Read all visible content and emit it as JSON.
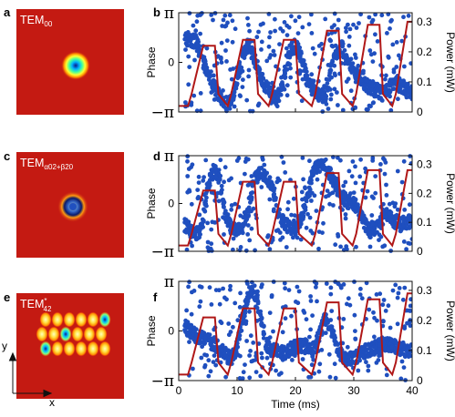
{
  "figure": {
    "panel_letters": [
      "a",
      "b",
      "c",
      "d",
      "e",
      "f"
    ],
    "mode_images": [
      {
        "letter": "a",
        "base": "TEM",
        "sub": "00",
        "sup": "",
        "pattern": "gaussian"
      },
      {
        "letter": "c",
        "base": "TEM",
        "sub": "α02+β20",
        "sup": "",
        "pattern": "donut"
      },
      {
        "letter": "e",
        "base": "TEM",
        "sub": "42",
        "sup": "*",
        "pattern": "multi-lobe"
      }
    ],
    "axis_arrows": {
      "x": "x",
      "y": "y"
    },
    "colors": {
      "phase": "#1f4fbf",
      "power": "#b01818",
      "map_background": "#c41a12"
    }
  },
  "chart_data": [
    {
      "panel": "b",
      "type": "scatter+line",
      "ylabel_left": "Phase",
      "ylabel_right": "Power (mW)",
      "yticks_left": [
        "π",
        "0",
        "−π"
      ],
      "yticks_right": [
        "0",
        "0.1",
        "0.2",
        "0.3"
      ],
      "xlim": [
        0,
        40
      ],
      "ylim_right": [
        0,
        0.33
      ],
      "power_series": {
        "name": "Power (mW)",
        "x": [
          0,
          1.6,
          2.2,
          4.2,
          6.2,
          6.8,
          8.4,
          9.0,
          11.0,
          13.0,
          13.6,
          15.4,
          16.0,
          18.0,
          20.0,
          20.6,
          22.8,
          23.4,
          25.4,
          27.4,
          28.0,
          29.8,
          30.4,
          32.4,
          34.4,
          35.0,
          36.6,
          37.2,
          39.2,
          40
        ],
        "values": [
          0.02,
          0.02,
          0.06,
          0.22,
          0.22,
          0.06,
          0.02,
          0.06,
          0.24,
          0.24,
          0.06,
          0.02,
          0.06,
          0.24,
          0.24,
          0.06,
          0.02,
          0.06,
          0.27,
          0.27,
          0.06,
          0.02,
          0.06,
          0.29,
          0.29,
          0.06,
          0.02,
          0.06,
          0.3,
          0.3
        ]
      },
      "phase_series": {
        "name": "Phase",
        "x": [
          1,
          2,
          3,
          4,
          5,
          6,
          7,
          8,
          9,
          10,
          11,
          12,
          13,
          14,
          15,
          16,
          17,
          18,
          19,
          20,
          21,
          22,
          23,
          24,
          25,
          26,
          27,
          28,
          29,
          30,
          31,
          32,
          33,
          34,
          35,
          36,
          37,
          38,
          39
        ],
        "values": [
          1.6,
          1.4,
          1.3,
          0.2,
          -0.6,
          -1.4,
          -2.2,
          -2.8,
          -2.4,
          -1.2,
          0.5,
          1.2,
          0.2,
          -0.9,
          -1.6,
          -2.0,
          -2.4,
          -1.0,
          0.7,
          1.1,
          0.3,
          -1.1,
          -1.7,
          -2.0,
          -2.2,
          -0.8,
          0.6,
          0.9,
          0.2,
          -0.4,
          -1.0,
          -1.4,
          -1.6,
          -1.8,
          -2.0,
          -1.6,
          -1.2,
          -1.5,
          -1.8
        ]
      }
    },
    {
      "panel": "d",
      "type": "scatter+line",
      "ylabel_left": "Phase",
      "ylabel_right": "Power (mW)",
      "yticks_left": [
        "π",
        "0",
        "−π"
      ],
      "yticks_right": [
        "0",
        "0.1",
        "0.2",
        "0.3"
      ],
      "xlim": [
        0,
        40
      ],
      "ylim_right": [
        0,
        0.33
      ],
      "power_series": {
        "name": "Power (mW)",
        "x": [
          0,
          1.6,
          2.2,
          4.2,
          6.2,
          6.8,
          8.4,
          9.0,
          11.0,
          13.0,
          13.6,
          15.4,
          16.0,
          18.0,
          20.0,
          20.6,
          22.8,
          23.4,
          25.4,
          27.4,
          28.0,
          29.8,
          30.4,
          32.4,
          34.4,
          35.0,
          36.6,
          37.2,
          39.2,
          40
        ],
        "values": [
          0.02,
          0.02,
          0.06,
          0.21,
          0.21,
          0.06,
          0.02,
          0.06,
          0.24,
          0.24,
          0.06,
          0.02,
          0.06,
          0.24,
          0.24,
          0.06,
          0.02,
          0.06,
          0.27,
          0.27,
          0.06,
          0.02,
          0.06,
          0.28,
          0.28,
          0.06,
          0.02,
          0.06,
          0.28,
          0.28
        ]
      },
      "phase_series": {
        "name": "Phase",
        "x": [
          1,
          2,
          3,
          4,
          5,
          6,
          7,
          8,
          9,
          10,
          11,
          12,
          13,
          14,
          15,
          16,
          17,
          18,
          19,
          20,
          21,
          22,
          23,
          24,
          25,
          26,
          27,
          28,
          29,
          30,
          31,
          32,
          33,
          34,
          35,
          36,
          37,
          38,
          39
        ],
        "values": [
          -1.4,
          -1.8,
          -2.0,
          -1.6,
          1.3,
          2.2,
          1.8,
          -0.8,
          -1.6,
          -1.7,
          -1.5,
          -0.4,
          1.6,
          2.0,
          1.8,
          1.2,
          -0.6,
          -1.3,
          -1.6,
          -1.7,
          -1.0,
          0.4,
          2.1,
          2.4,
          2.6,
          1.9,
          1.2,
          0.4,
          0.1,
          0.0,
          -0.6,
          -1.4,
          -1.9,
          -1.6,
          -1.0,
          -0.6,
          -1.2,
          -1.4,
          -1.2
        ]
      }
    },
    {
      "panel": "f",
      "type": "scatter+line",
      "xlabel": "Time (ms)",
      "ylabel_left": "Phase",
      "ylabel_right": "Power (mW)",
      "xticks": [
        "0",
        "10",
        "20",
        "30",
        "40"
      ],
      "yticks_left": [
        "π",
        "0",
        "−π"
      ],
      "yticks_right": [
        "0",
        "0.1",
        "0.2",
        "0.3"
      ],
      "xlim": [
        0,
        40
      ],
      "ylim_right": [
        0,
        0.33
      ],
      "power_series": {
        "name": "Power (mW)",
        "x": [
          0,
          1.6,
          2.2,
          4.2,
          6.2,
          6.8,
          8.4,
          9.0,
          11.0,
          13.0,
          13.6,
          15.4,
          16.0,
          18.0,
          20.0,
          20.6,
          22.8,
          23.4,
          25.4,
          27.4,
          28.0,
          29.8,
          30.4,
          32.4,
          34.4,
          35.0,
          36.6,
          37.2,
          39.2,
          40
        ],
        "values": [
          0.02,
          0.02,
          0.06,
          0.21,
          0.21,
          0.06,
          0.02,
          0.06,
          0.24,
          0.24,
          0.06,
          0.02,
          0.06,
          0.24,
          0.24,
          0.06,
          0.02,
          0.06,
          0.26,
          0.26,
          0.06,
          0.02,
          0.06,
          0.27,
          0.27,
          0.06,
          0.02,
          0.06,
          0.29,
          0.29
        ]
      },
      "phase_series": {
        "name": "Phase",
        "x": [
          1,
          2,
          3,
          4,
          5,
          6,
          7,
          8,
          9,
          10,
          11,
          12,
          13,
          14,
          15,
          16,
          17,
          18,
          19,
          20,
          21,
          22,
          23,
          24,
          25,
          26,
          27,
          28,
          29,
          30,
          31,
          32,
          33,
          34,
          35,
          36,
          37,
          38,
          39
        ],
        "values": [
          0.3,
          0.0,
          -0.3,
          -0.5,
          -0.6,
          -0.8,
          -1.1,
          -1.5,
          -1.8,
          -1.0,
          0.8,
          2.4,
          2.3,
          1.0,
          -0.8,
          -1.2,
          -1.3,
          -1.4,
          -1.2,
          -1.0,
          -0.9,
          -1.0,
          -1.2,
          -0.4,
          0.8,
          0.3,
          -1.0,
          -1.6,
          -1.9,
          -1.7,
          -1.5,
          -1.3,
          -1.1,
          -1.0,
          -0.8,
          -0.9,
          -1.0,
          -1.1,
          -1.2
        ]
      }
    }
  ]
}
